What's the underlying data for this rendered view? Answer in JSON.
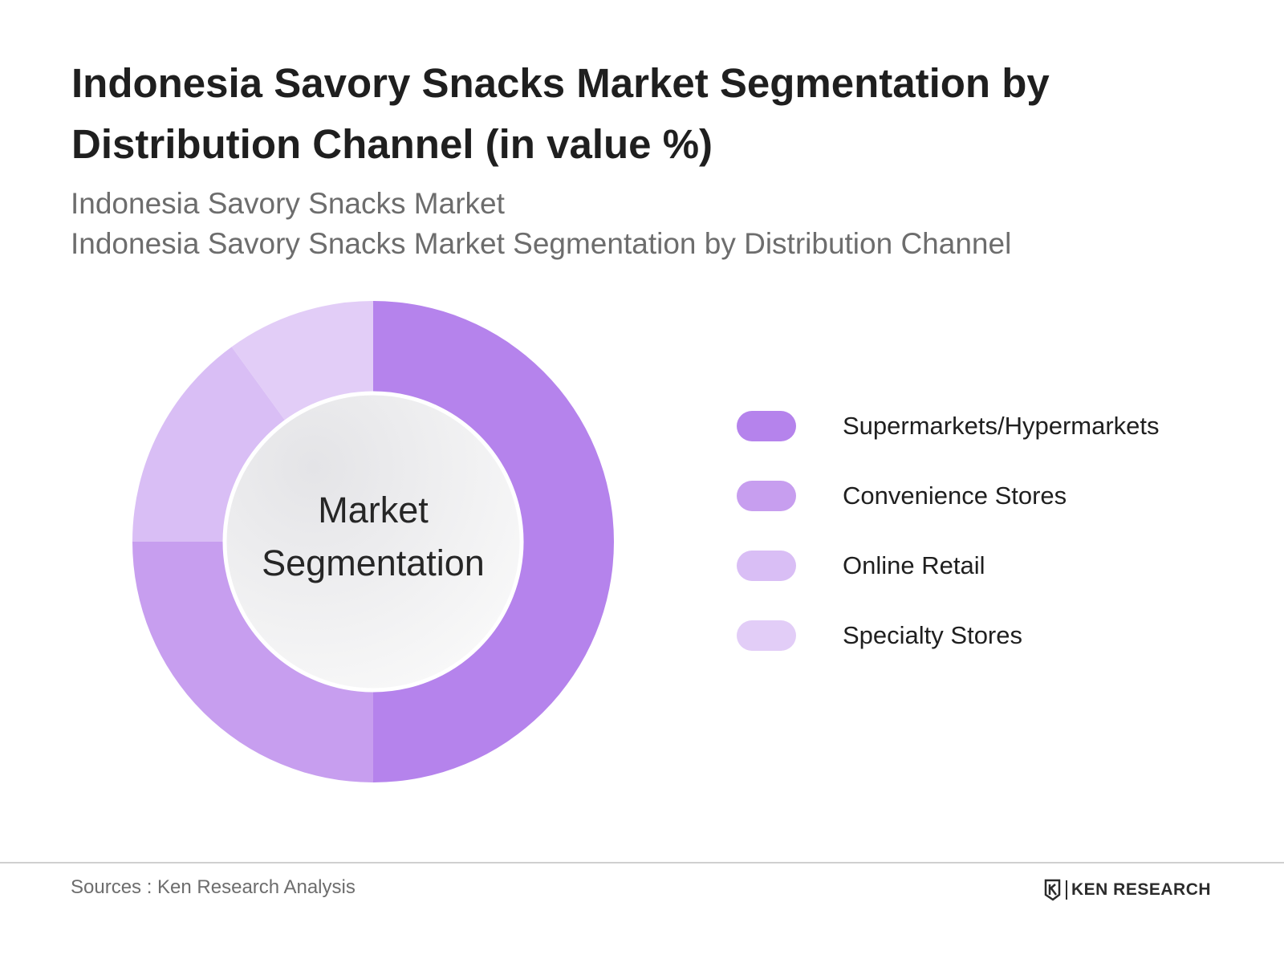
{
  "title": "Indonesia Savory Snacks Market Segmentation by Distribution Channel (in value %)",
  "subtitle_1": "Indonesia Savory Snacks Market",
  "subtitle_2": "Indonesia Savory Snacks Market Segmentation by Distribution Channel",
  "center_label": {
    "line1": "Market",
    "line2": "Segmentation"
  },
  "chart_data": {
    "type": "pie",
    "title": "Indonesia Savory Snacks Market Segmentation by Distribution Channel (in value %)",
    "categories": [
      "Supermarkets/Hypermarkets",
      "Convenience Stores",
      "Online Retail",
      "Specialty Stores"
    ],
    "values": [
      50,
      25,
      15,
      10
    ],
    "colors": [
      "#b583ec",
      "#c79eef",
      "#d9bef5",
      "#e2cdf7"
    ],
    "donut": true,
    "legend_position": "right"
  },
  "footer": {
    "source": "Sources : Ken Research Analysis",
    "brand": "KEN RESEARCH"
  }
}
